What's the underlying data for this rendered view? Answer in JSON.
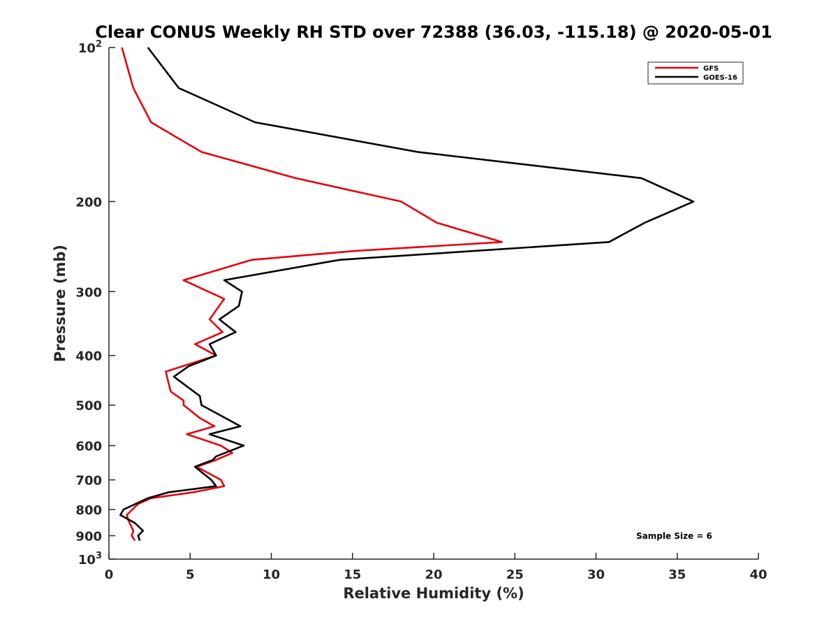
{
  "chart_data": {
    "type": "line",
    "title": "Clear CONUS Weekly RH STD over 72388 (36.03, -115.18) @ 2020-05-01",
    "xlabel": "Relative Humidity (%)",
    "ylabel": "Pressure (mb)",
    "xlim": [
      0,
      40
    ],
    "ylim": [
      100,
      1000
    ],
    "y_scale": "log",
    "y_reversed": true,
    "grid": false,
    "legend_placement": "top-right",
    "x_ticks": [
      0,
      5,
      10,
      15,
      20,
      25,
      30,
      35,
      40
    ],
    "y_ticks": [
      {
        "value": 100,
        "base": "10",
        "exponent": "2"
      },
      {
        "value": 200,
        "label": "200"
      },
      {
        "value": 300,
        "label": "300"
      },
      {
        "value": 400,
        "label": "400"
      },
      {
        "value": 500,
        "label": "500"
      },
      {
        "value": 600,
        "label": "600"
      },
      {
        "value": 700,
        "label": "700"
      },
      {
        "value": 800,
        "label": "800"
      },
      {
        "value": 900,
        "label": "900"
      },
      {
        "value": 1000,
        "base": "10",
        "exponent": "3"
      }
    ],
    "annotation": "Sample Size = 6",
    "series": [
      {
        "name": "GFS",
        "color": "#e8000b",
        "points": [
          {
            "x": 0.8,
            "y": 100
          },
          {
            "x": 1.5,
            "y": 120
          },
          {
            "x": 2.6,
            "y": 140
          },
          {
            "x": 5.7,
            "y": 160
          },
          {
            "x": 11.5,
            "y": 180
          },
          {
            "x": 18.0,
            "y": 200
          },
          {
            "x": 20.2,
            "y": 220
          },
          {
            "x": 24.2,
            "y": 240
          },
          {
            "x": 15.0,
            "y": 250
          },
          {
            "x": 8.8,
            "y": 260
          },
          {
            "x": 4.6,
            "y": 285
          },
          {
            "x": 7.1,
            "y": 310
          },
          {
            "x": 6.2,
            "y": 340
          },
          {
            "x": 7.0,
            "y": 360
          },
          {
            "x": 5.3,
            "y": 380
          },
          {
            "x": 6.6,
            "y": 400
          },
          {
            "x": 3.5,
            "y": 430
          },
          {
            "x": 3.8,
            "y": 470
          },
          {
            "x": 4.6,
            "y": 490
          },
          {
            "x": 4.6,
            "y": 500
          },
          {
            "x": 5.6,
            "y": 530
          },
          {
            "x": 6.5,
            "y": 550
          },
          {
            "x": 4.8,
            "y": 570
          },
          {
            "x": 6.9,
            "y": 600
          },
          {
            "x": 7.6,
            "y": 620
          },
          {
            "x": 6.6,
            "y": 640
          },
          {
            "x": 5.4,
            "y": 660
          },
          {
            "x": 6.9,
            "y": 700
          },
          {
            "x": 7.1,
            "y": 720
          },
          {
            "x": 5.2,
            "y": 740
          },
          {
            "x": 2.6,
            "y": 760
          },
          {
            "x": 1.8,
            "y": 780
          },
          {
            "x": 1.1,
            "y": 820
          },
          {
            "x": 1.2,
            "y": 840
          },
          {
            "x": 1.5,
            "y": 880
          },
          {
            "x": 1.4,
            "y": 900
          },
          {
            "x": 1.6,
            "y": 920
          }
        ]
      },
      {
        "name": "GOES-16",
        "color": "#000000",
        "points": [
          {
            "x": 2.4,
            "y": 100
          },
          {
            "x": 4.3,
            "y": 120
          },
          {
            "x": 9.0,
            "y": 140
          },
          {
            "x": 19.0,
            "y": 160
          },
          {
            "x": 32.8,
            "y": 180
          },
          {
            "x": 36.0,
            "y": 200
          },
          {
            "x": 33.0,
            "y": 220
          },
          {
            "x": 30.8,
            "y": 240
          },
          {
            "x": 14.2,
            "y": 260
          },
          {
            "x": 7.1,
            "y": 285
          },
          {
            "x": 8.2,
            "y": 300
          },
          {
            "x": 8.0,
            "y": 320
          },
          {
            "x": 6.8,
            "y": 340
          },
          {
            "x": 7.8,
            "y": 360
          },
          {
            "x": 6.2,
            "y": 380
          },
          {
            "x": 6.6,
            "y": 400
          },
          {
            "x": 4.9,
            "y": 420
          },
          {
            "x": 4.0,
            "y": 440
          },
          {
            "x": 5.6,
            "y": 480
          },
          {
            "x": 5.7,
            "y": 500
          },
          {
            "x": 8.1,
            "y": 550
          },
          {
            "x": 6.2,
            "y": 570
          },
          {
            "x": 8.3,
            "y": 600
          },
          {
            "x": 6.6,
            "y": 630
          },
          {
            "x": 6.4,
            "y": 640
          },
          {
            "x": 5.3,
            "y": 660
          },
          {
            "x": 6.3,
            "y": 700
          },
          {
            "x": 6.6,
            "y": 720
          },
          {
            "x": 3.7,
            "y": 740
          },
          {
            "x": 2.4,
            "y": 760
          },
          {
            "x": 0.9,
            "y": 800
          },
          {
            "x": 0.7,
            "y": 820
          },
          {
            "x": 1.6,
            "y": 850
          },
          {
            "x": 2.1,
            "y": 880
          },
          {
            "x": 1.8,
            "y": 900
          },
          {
            "x": 1.9,
            "y": 920
          }
        ]
      }
    ]
  }
}
